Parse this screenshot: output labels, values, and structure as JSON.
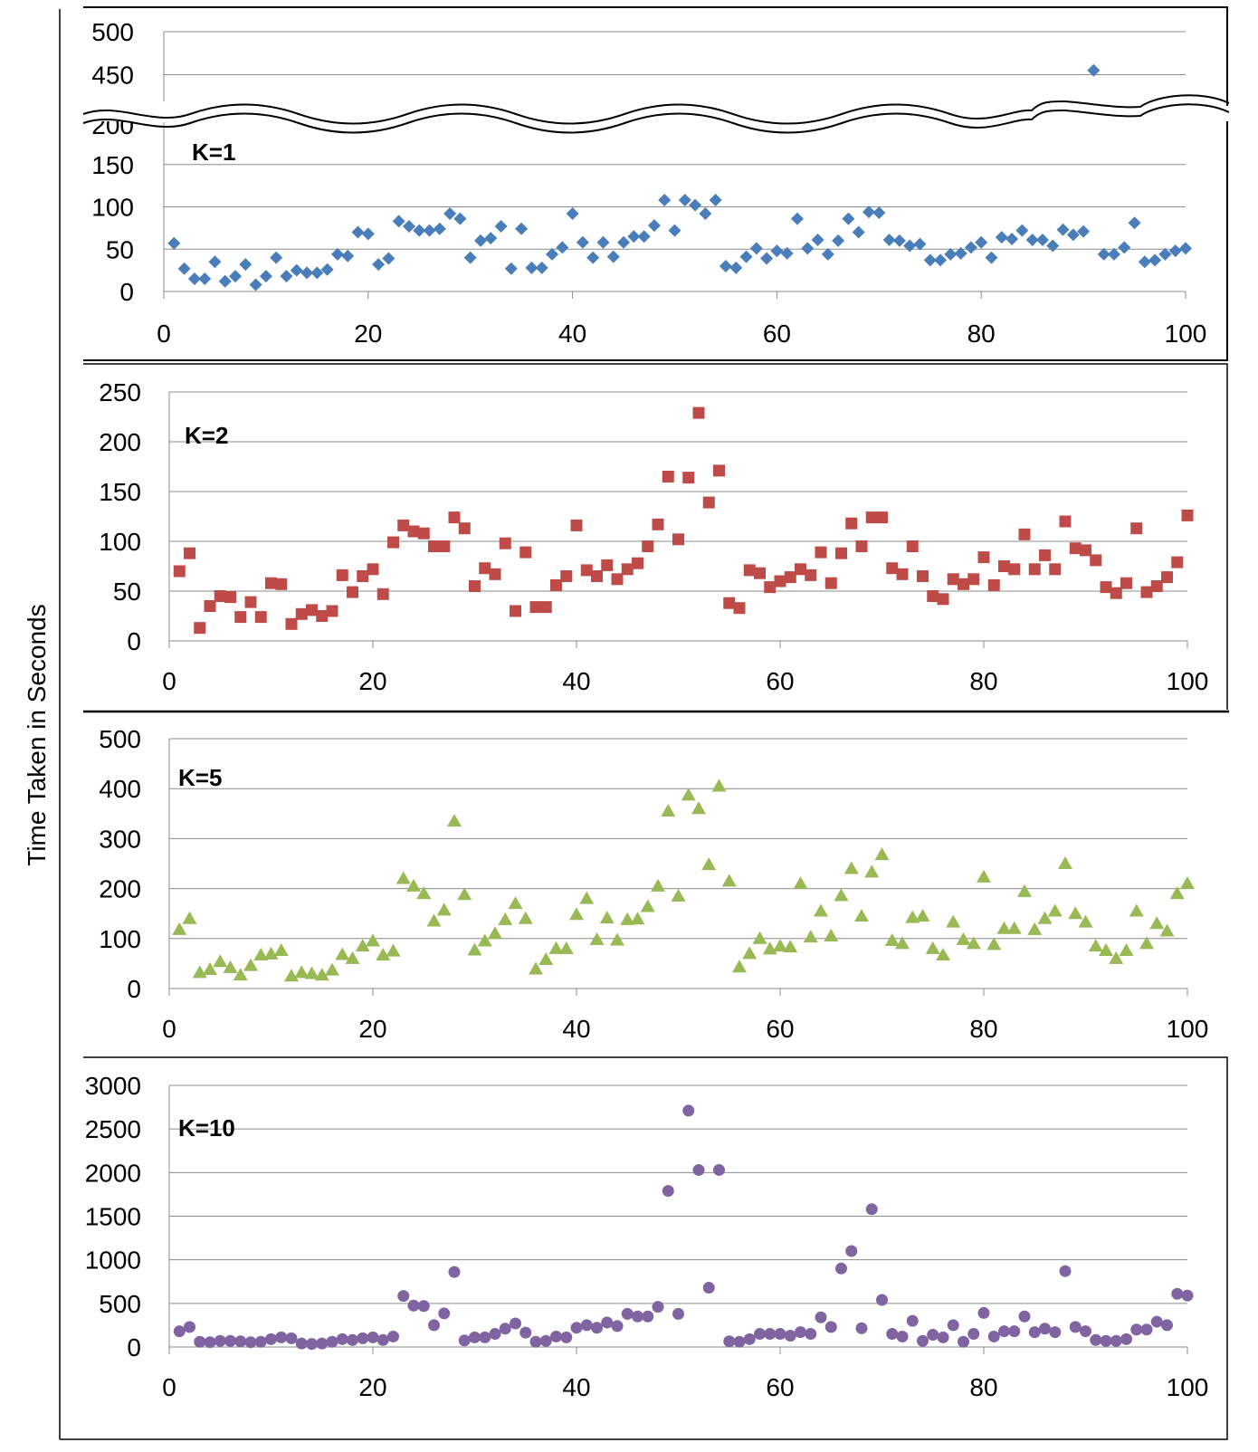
{
  "figure": {
    "ylabel": "Time Taken in Seconds"
  },
  "chart_data": [
    {
      "type": "scatter",
      "label": "K=1",
      "color": "#4a7ebb",
      "marker": "diamond",
      "axis_break": true,
      "xlim": [
        0,
        100
      ],
      "xticks": [
        0,
        20,
        40,
        60,
        80,
        100
      ],
      "ylim": [
        0,
        200
      ],
      "yticks": [
        0,
        50,
        100,
        150
      ],
      "broken_cut_tick": "200",
      "upper_ylim": [
        400,
        500
      ],
      "upper_yticks": [
        450,
        500
      ],
      "x": [
        1,
        2,
        3,
        4,
        5,
        6,
        7,
        8,
        9,
        10,
        11,
        12,
        13,
        14,
        15,
        16,
        17,
        18,
        19,
        20,
        21,
        22,
        23,
        24,
        25,
        26,
        27,
        28,
        29,
        30,
        31,
        32,
        33,
        34,
        35,
        36,
        37,
        38,
        39,
        40,
        41,
        42,
        43,
        44,
        45,
        46,
        47,
        48,
        49,
        50,
        51,
        52,
        53,
        54,
        55,
        56,
        57,
        58,
        59,
        60,
        61,
        62,
        63,
        64,
        65,
        66,
        67,
        68,
        69,
        70,
        71,
        72,
        73,
        74,
        75,
        76,
        77,
        78,
        79,
        80,
        81,
        82,
        83,
        84,
        85,
        86,
        87,
        88,
        89,
        90,
        91,
        92,
        93,
        94,
        95,
        96,
        97,
        98,
        99,
        100
      ],
      "y": [
        57,
        27,
        15,
        15,
        35,
        12,
        18,
        32,
        8,
        18,
        40,
        18,
        25,
        22,
        22,
        26,
        44,
        42,
        70,
        68,
        32,
        39,
        83,
        77,
        72,
        72,
        74,
        92,
        86,
        40,
        60,
        63,
        77,
        27,
        74,
        28,
        28,
        44,
        52,
        92,
        58,
        40,
        58,
        41,
        58,
        65,
        65,
        78,
        108,
        72,
        108,
        102,
        92,
        108,
        30,
        28,
        41,
        51,
        39,
        48,
        45,
        86,
        51,
        61,
        44,
        60,
        86,
        70,
        94,
        93,
        61,
        60,
        54,
        56,
        37,
        37,
        44,
        45,
        52,
        58,
        40,
        64,
        62,
        72,
        61,
        61,
        54,
        73,
        67,
        71,
        455,
        44,
        44,
        52,
        81,
        35,
        37,
        44,
        48,
        51
      ]
    },
    {
      "type": "scatter",
      "label": "K=2",
      "color": "#be4b48",
      "marker": "square",
      "xlim": [
        0,
        100
      ],
      "xticks": [
        0,
        20,
        40,
        60,
        80,
        100
      ],
      "ylim": [
        0,
        250
      ],
      "yticks": [
        0,
        50,
        100,
        150,
        200,
        250
      ],
      "x": [
        1,
        2,
        3,
        4,
        5,
        6,
        7,
        8,
        9,
        10,
        11,
        12,
        13,
        14,
        15,
        16,
        17,
        18,
        19,
        20,
        21,
        22,
        23,
        24,
        25,
        26,
        27,
        28,
        29,
        30,
        31,
        32,
        33,
        34,
        35,
        36,
        37,
        38,
        39,
        40,
        41,
        42,
        43,
        44,
        45,
        46,
        47,
        48,
        49,
        50,
        51,
        52,
        53,
        54,
        55,
        56,
        57,
        58,
        59,
        60,
        61,
        62,
        63,
        64,
        65,
        66,
        67,
        68,
        69,
        70,
        71,
        72,
        73,
        74,
        75,
        76,
        77,
        78,
        79,
        80,
        81,
        82,
        83,
        84,
        85,
        86,
        87,
        88,
        89,
        90,
        91,
        92,
        93,
        94,
        95,
        96,
        97,
        98,
        99,
        100
      ],
      "y": [
        70,
        88,
        13,
        35,
        45,
        44,
        24,
        39,
        24,
        58,
        57,
        17,
        27,
        31,
        25,
        30,
        66,
        49,
        65,
        72,
        47,
        99,
        116,
        110,
        108,
        95,
        95,
        124,
        113,
        55,
        73,
        67,
        98,
        30,
        89,
        34,
        34,
        56,
        65,
        116,
        71,
        65,
        76,
        62,
        72,
        78,
        95,
        117,
        165,
        102,
        164,
        229,
        139,
        171,
        38,
        33,
        71,
        68,
        54,
        60,
        64,
        72,
        66,
        89,
        58,
        88,
        118,
        95,
        124,
        124,
        73,
        67,
        95,
        65,
        45,
        42,
        62,
        57,
        62,
        84,
        56,
        75,
        72,
        107,
        72,
        86,
        72,
        120,
        93,
        91,
        81,
        54,
        48,
        58,
        113,
        49,
        55,
        64,
        79,
        126
      ]
    },
    {
      "type": "scatter",
      "label": "K=5",
      "color": "#98b954",
      "marker": "triangle",
      "xlim": [
        0,
        100
      ],
      "xticks": [
        0,
        20,
        40,
        60,
        80,
        100
      ],
      "ylim": [
        0,
        500
      ],
      "yticks": [
        0,
        100,
        200,
        300,
        400,
        500
      ],
      "x": [
        1,
        2,
        3,
        4,
        5,
        6,
        7,
        8,
        9,
        10,
        11,
        12,
        13,
        14,
        15,
        16,
        17,
        18,
        19,
        20,
        21,
        22,
        23,
        24,
        25,
        26,
        27,
        28,
        29,
        30,
        31,
        32,
        33,
        34,
        35,
        36,
        37,
        38,
        39,
        40,
        41,
        42,
        43,
        44,
        45,
        46,
        47,
        48,
        49,
        50,
        51,
        52,
        53,
        54,
        55,
        56,
        57,
        58,
        59,
        60,
        61,
        62,
        63,
        64,
        65,
        66,
        67,
        68,
        69,
        70,
        71,
        72,
        73,
        74,
        75,
        76,
        77,
        78,
        79,
        80,
        81,
        82,
        83,
        84,
        85,
        86,
        87,
        88,
        89,
        90,
        91,
        92,
        93,
        94,
        95,
        96,
        97,
        98,
        99,
        100
      ],
      "y": [
        118,
        140,
        32,
        38,
        54,
        42,
        27,
        46,
        67,
        69,
        76,
        25,
        32,
        30,
        27,
        37,
        68,
        60,
        85,
        95,
        67,
        75,
        220,
        205,
        190,
        135,
        157,
        335,
        188,
        77,
        95,
        110,
        138,
        170,
        140,
        39,
        58,
        80,
        80,
        148,
        180,
        98,
        141,
        97,
        138,
        139,
        164,
        205,
        355,
        185,
        387,
        360,
        248,
        405,
        215,
        43,
        70,
        100,
        79,
        85,
        83,
        210,
        103,
        155,
        105,
        186,
        240,
        145,
        233,
        268,
        96,
        90,
        142,
        145,
        80,
        67,
        133,
        98,
        90,
        223,
        88,
        120,
        120,
        194,
        118,
        140,
        155,
        250,
        150,
        133,
        85,
        76,
        60,
        76,
        155,
        90,
        130,
        115,
        190,
        210
      ]
    },
    {
      "type": "scatter",
      "label": "K=10",
      "color": "#8064a2",
      "marker": "circle",
      "xlim": [
        0,
        100
      ],
      "xticks": [
        0,
        20,
        40,
        60,
        80,
        100
      ],
      "ylim": [
        0,
        3000
      ],
      "yticks": [
        0,
        500,
        1000,
        1500,
        2000,
        2500,
        3000
      ],
      "x": [
        1,
        2,
        3,
        4,
        5,
        6,
        7,
        8,
        9,
        10,
        11,
        12,
        13,
        14,
        15,
        16,
        17,
        18,
        19,
        20,
        21,
        22,
        23,
        24,
        25,
        26,
        27,
        28,
        29,
        30,
        31,
        32,
        33,
        34,
        35,
        36,
        37,
        38,
        39,
        40,
        41,
        42,
        43,
        44,
        45,
        46,
        47,
        48,
        49,
        50,
        51,
        52,
        53,
        54,
        55,
        56,
        57,
        58,
        59,
        60,
        61,
        62,
        63,
        64,
        65,
        66,
        67,
        68,
        69,
        70,
        71,
        72,
        73,
        74,
        75,
        76,
        77,
        78,
        79,
        80,
        81,
        82,
        83,
        84,
        85,
        86,
        87,
        88,
        89,
        90,
        91,
        92,
        93,
        94,
        95,
        96,
        97,
        98,
        99,
        100
      ],
      "y": [
        180,
        230,
        60,
        55,
        70,
        70,
        65,
        55,
        60,
        90,
        110,
        100,
        40,
        35,
        40,
        60,
        90,
        80,
        100,
        110,
        80,
        120,
        585,
        475,
        470,
        250,
        385,
        860,
        75,
        110,
        110,
        150,
        210,
        270,
        165,
        60,
        70,
        120,
        110,
        220,
        250,
        220,
        280,
        240,
        380,
        350,
        350,
        460,
        1790,
        380,
        2710,
        2030,
        680,
        2030,
        65,
        60,
        90,
        150,
        150,
        150,
        130,
        170,
        150,
        340,
        230,
        900,
        1100,
        215,
        1580,
        540,
        150,
        120,
        300,
        70,
        140,
        110,
        250,
        60,
        150,
        390,
        120,
        180,
        180,
        350,
        170,
        210,
        170,
        870,
        230,
        180,
        80,
        70,
        70,
        90,
        200,
        200,
        290,
        250,
        610,
        590
      ]
    }
  ]
}
